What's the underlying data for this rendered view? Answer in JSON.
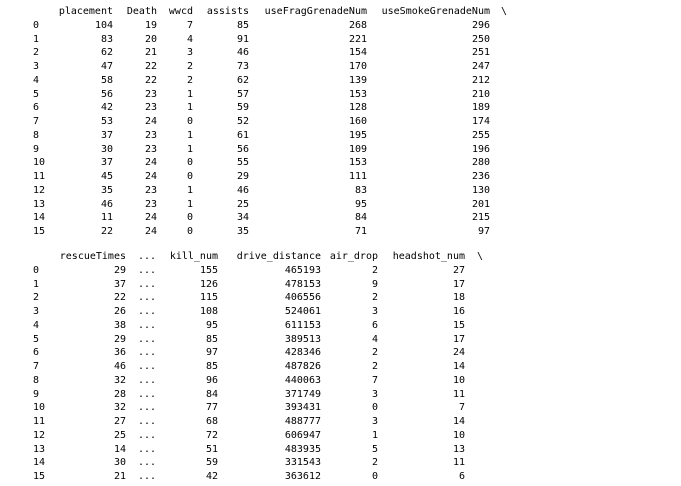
{
  "tables": [
    {
      "columns": [
        "placement",
        "Death",
        "wwcd",
        "assists",
        "useFragGrenadeNum",
        "useSmokeGrenadeNum"
      ],
      "continuation": "\\",
      "index": [
        0,
        1,
        2,
        3,
        4,
        5,
        6,
        7,
        8,
        9,
        10,
        11,
        12,
        13,
        14,
        15
      ],
      "rows": [
        [
          104,
          19,
          7,
          85,
          268,
          296
        ],
        [
          83,
          20,
          4,
          91,
          221,
          250
        ],
        [
          62,
          21,
          3,
          46,
          154,
          251
        ],
        [
          47,
          22,
          2,
          73,
          170,
          247
        ],
        [
          58,
          22,
          2,
          62,
          139,
          212
        ],
        [
          56,
          23,
          1,
          57,
          153,
          210
        ],
        [
          42,
          23,
          1,
          59,
          128,
          189
        ],
        [
          53,
          24,
          0,
          52,
          160,
          174
        ],
        [
          37,
          23,
          1,
          61,
          195,
          255
        ],
        [
          30,
          23,
          1,
          56,
          109,
          196
        ],
        [
          37,
          24,
          0,
          55,
          153,
          280
        ],
        [
          45,
          24,
          0,
          29,
          111,
          236
        ],
        [
          35,
          23,
          1,
          46,
          83,
          130
        ],
        [
          46,
          23,
          1,
          25,
          95,
          201
        ],
        [
          11,
          24,
          0,
          34,
          84,
          215
        ],
        [
          22,
          24,
          0,
          35,
          71,
          97
        ]
      ]
    },
    {
      "columns": [
        "rescueTimes",
        "...",
        "kill_num",
        "drive_distance",
        "air_drop",
        "headshot_num"
      ],
      "continuation": "\\",
      "index": [
        0,
        1,
        2,
        3,
        4,
        5,
        6,
        7,
        8,
        9,
        10,
        11,
        12,
        13,
        14,
        15
      ],
      "rows": [
        [
          29,
          "...",
          155,
          465193,
          2,
          27
        ],
        [
          37,
          "...",
          126,
          478153,
          9,
          17
        ],
        [
          22,
          "...",
          115,
          406556,
          2,
          18
        ],
        [
          26,
          "...",
          108,
          524061,
          3,
          16
        ],
        [
          38,
          "...",
          95,
          611153,
          6,
          15
        ],
        [
          29,
          "...",
          85,
          389513,
          4,
          17
        ],
        [
          36,
          "...",
          97,
          428346,
          2,
          24
        ],
        [
          46,
          "...",
          85,
          487826,
          2,
          14
        ],
        [
          32,
          "...",
          96,
          440063,
          7,
          10
        ],
        [
          28,
          "...",
          84,
          371749,
          3,
          11
        ],
        [
          32,
          "...",
          77,
          393431,
          0,
          7
        ],
        [
          27,
          "...",
          68,
          488777,
          3,
          14
        ],
        [
          25,
          "...",
          72,
          606947,
          1,
          10
        ],
        [
          14,
          "...",
          51,
          483935,
          5,
          13
        ],
        [
          30,
          "...",
          59,
          331543,
          2,
          11
        ],
        [
          21,
          "...",
          42,
          363612,
          0,
          6
        ]
      ]
    }
  ]
}
